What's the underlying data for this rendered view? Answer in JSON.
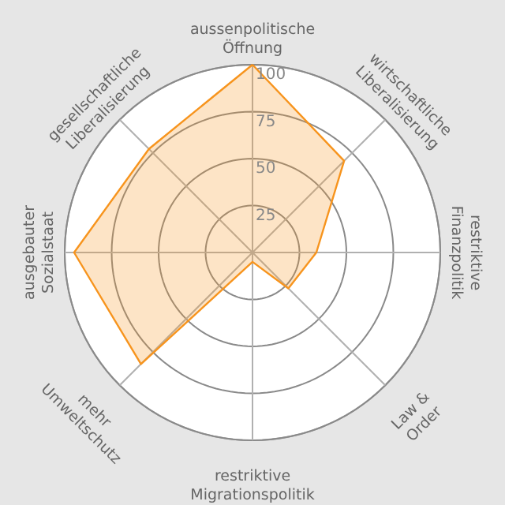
{
  "chart_data": {
    "type": "radar",
    "categories": [
      "aussenpolitische Öffnung",
      "wirtschaftliche Liberalisierung",
      "restriktive Finanzpolitik",
      "Law & Order",
      "restriktive Migrationspolitik",
      "mehr Umweltschutz",
      "ausgebauter Sozialstaat",
      "gesellschaftliche Liberalisierung"
    ],
    "series": [
      {
        "color": "#f7941d",
        "values": [
          100,
          69,
          34,
          27,
          5,
          84,
          95,
          78
        ]
      }
    ],
    "ylim": [
      0,
      100
    ],
    "yticks": [
      25,
      50,
      75,
      100
    ],
    "grid": true
  }
}
